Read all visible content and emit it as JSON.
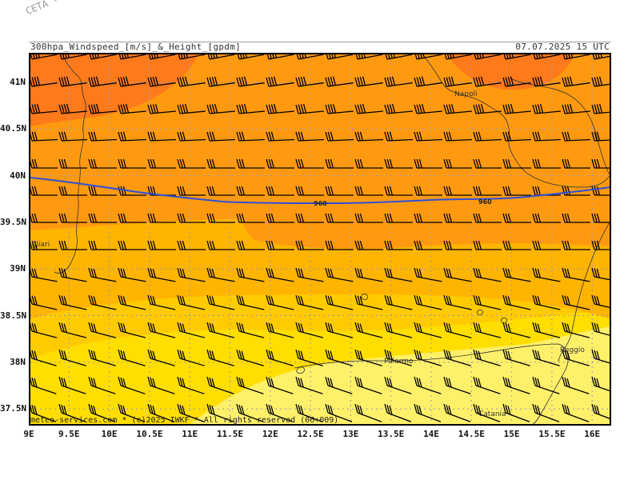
{
  "watermark": "CETA - Inst.",
  "header": {
    "title": "300hpa_Windspeed_[m/s]_&_Height_[gpdm]",
    "datetime": "07.07.2025 15 UTC"
  },
  "footer": "meteo-services.com * (c)2025 IWKF * All rights reserved (06+009)",
  "axes": {
    "y_labels": [
      "41N",
      "40.5N",
      "40N",
      "39.5N",
      "39N",
      "38.5N",
      "38N",
      "37.5N"
    ],
    "x_labels": [
      "9E",
      "9.5E",
      "10E",
      "10.5E",
      "11E",
      "11.5E",
      "12E",
      "12.5E",
      "13E",
      "13.5E",
      "14E",
      "14.5E",
      "15E",
      "15.5E",
      "16E"
    ]
  },
  "cities": [
    "Napoli",
    "Cagliari",
    "Palermo",
    "Reggio",
    "Catania"
  ],
  "contour": {
    "value": "960",
    "color": "#2d4fd8"
  },
  "colors": {
    "dark_orange": "#ff7a1a",
    "orange": "#ff9a10",
    "orange_light": "#ffb400",
    "amber": "#ffcb00",
    "yellow": "#ffde00",
    "pale_yellow": "#fff06a",
    "grid": "#9a9ab8",
    "coast": "#333333"
  }
}
